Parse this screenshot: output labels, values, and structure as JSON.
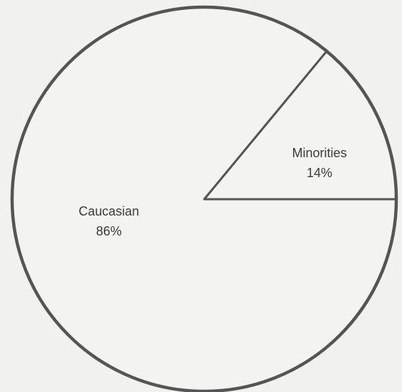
{
  "chart_data": {
    "type": "pie",
    "slices": [
      {
        "label": "Caucasian",
        "value": 86,
        "value_label": "86%"
      },
      {
        "label": "Minorities",
        "value": 14,
        "value_label": "14%"
      }
    ],
    "colors": {
      "outline": "#555555",
      "fill": "#f3f3f1"
    }
  }
}
